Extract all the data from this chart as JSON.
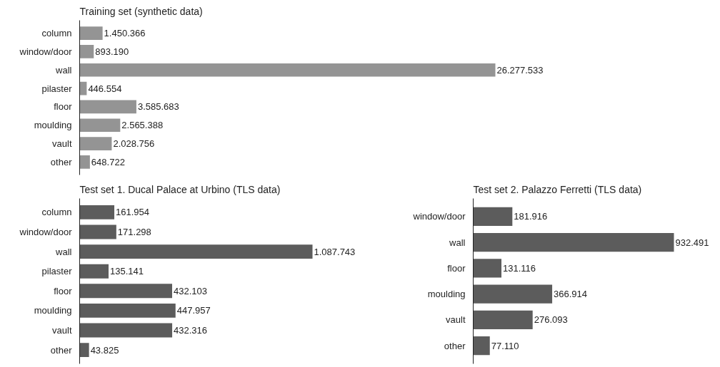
{
  "chart_data": [
    {
      "type": "bar",
      "orientation": "horizontal",
      "title": "Training set (synthetic data)",
      "color": "#949494",
      "categories": [
        "column",
        "window/door",
        "wall",
        "pilaster",
        "floor",
        "moulding",
        "vault",
        "other"
      ],
      "values": [
        1450366,
        893190,
        26277533,
        446554,
        3585683,
        2565388,
        2028756,
        648722
      ],
      "value_labels": [
        "1.450.366",
        "893.190",
        "26.277.533",
        "446.554",
        "3.585.683",
        "2.565.388",
        "2.028.756",
        "648.722"
      ]
    },
    {
      "type": "bar",
      "orientation": "horizontal",
      "title": "Test set 1. Ducal Palace at Urbino (TLS data)",
      "color": "#5c5c5c",
      "categories": [
        "column",
        "window/door",
        "wall",
        "pilaster",
        "floor",
        "moulding",
        "vault",
        "other"
      ],
      "values": [
        161954,
        171298,
        1087743,
        135141,
        432103,
        447957,
        432316,
        43825
      ],
      "value_labels": [
        "161.954",
        "171.298",
        "1.087.743",
        "135.141",
        "432.103",
        "447.957",
        "432.316",
        "43.825"
      ]
    },
    {
      "type": "bar",
      "orientation": "horizontal",
      "title": "Test set 2. Palazzo Ferretti (TLS data)",
      "color": "#5c5c5c",
      "categories": [
        "window/door",
        "wall",
        "floor",
        "moulding",
        "vault",
        "other"
      ],
      "values": [
        181916,
        932491,
        131116,
        366914,
        276093,
        77110
      ],
      "value_labels": [
        "181.916",
        "932.491",
        "131.116",
        "366.914",
        "276.093",
        "77.110"
      ]
    }
  ]
}
